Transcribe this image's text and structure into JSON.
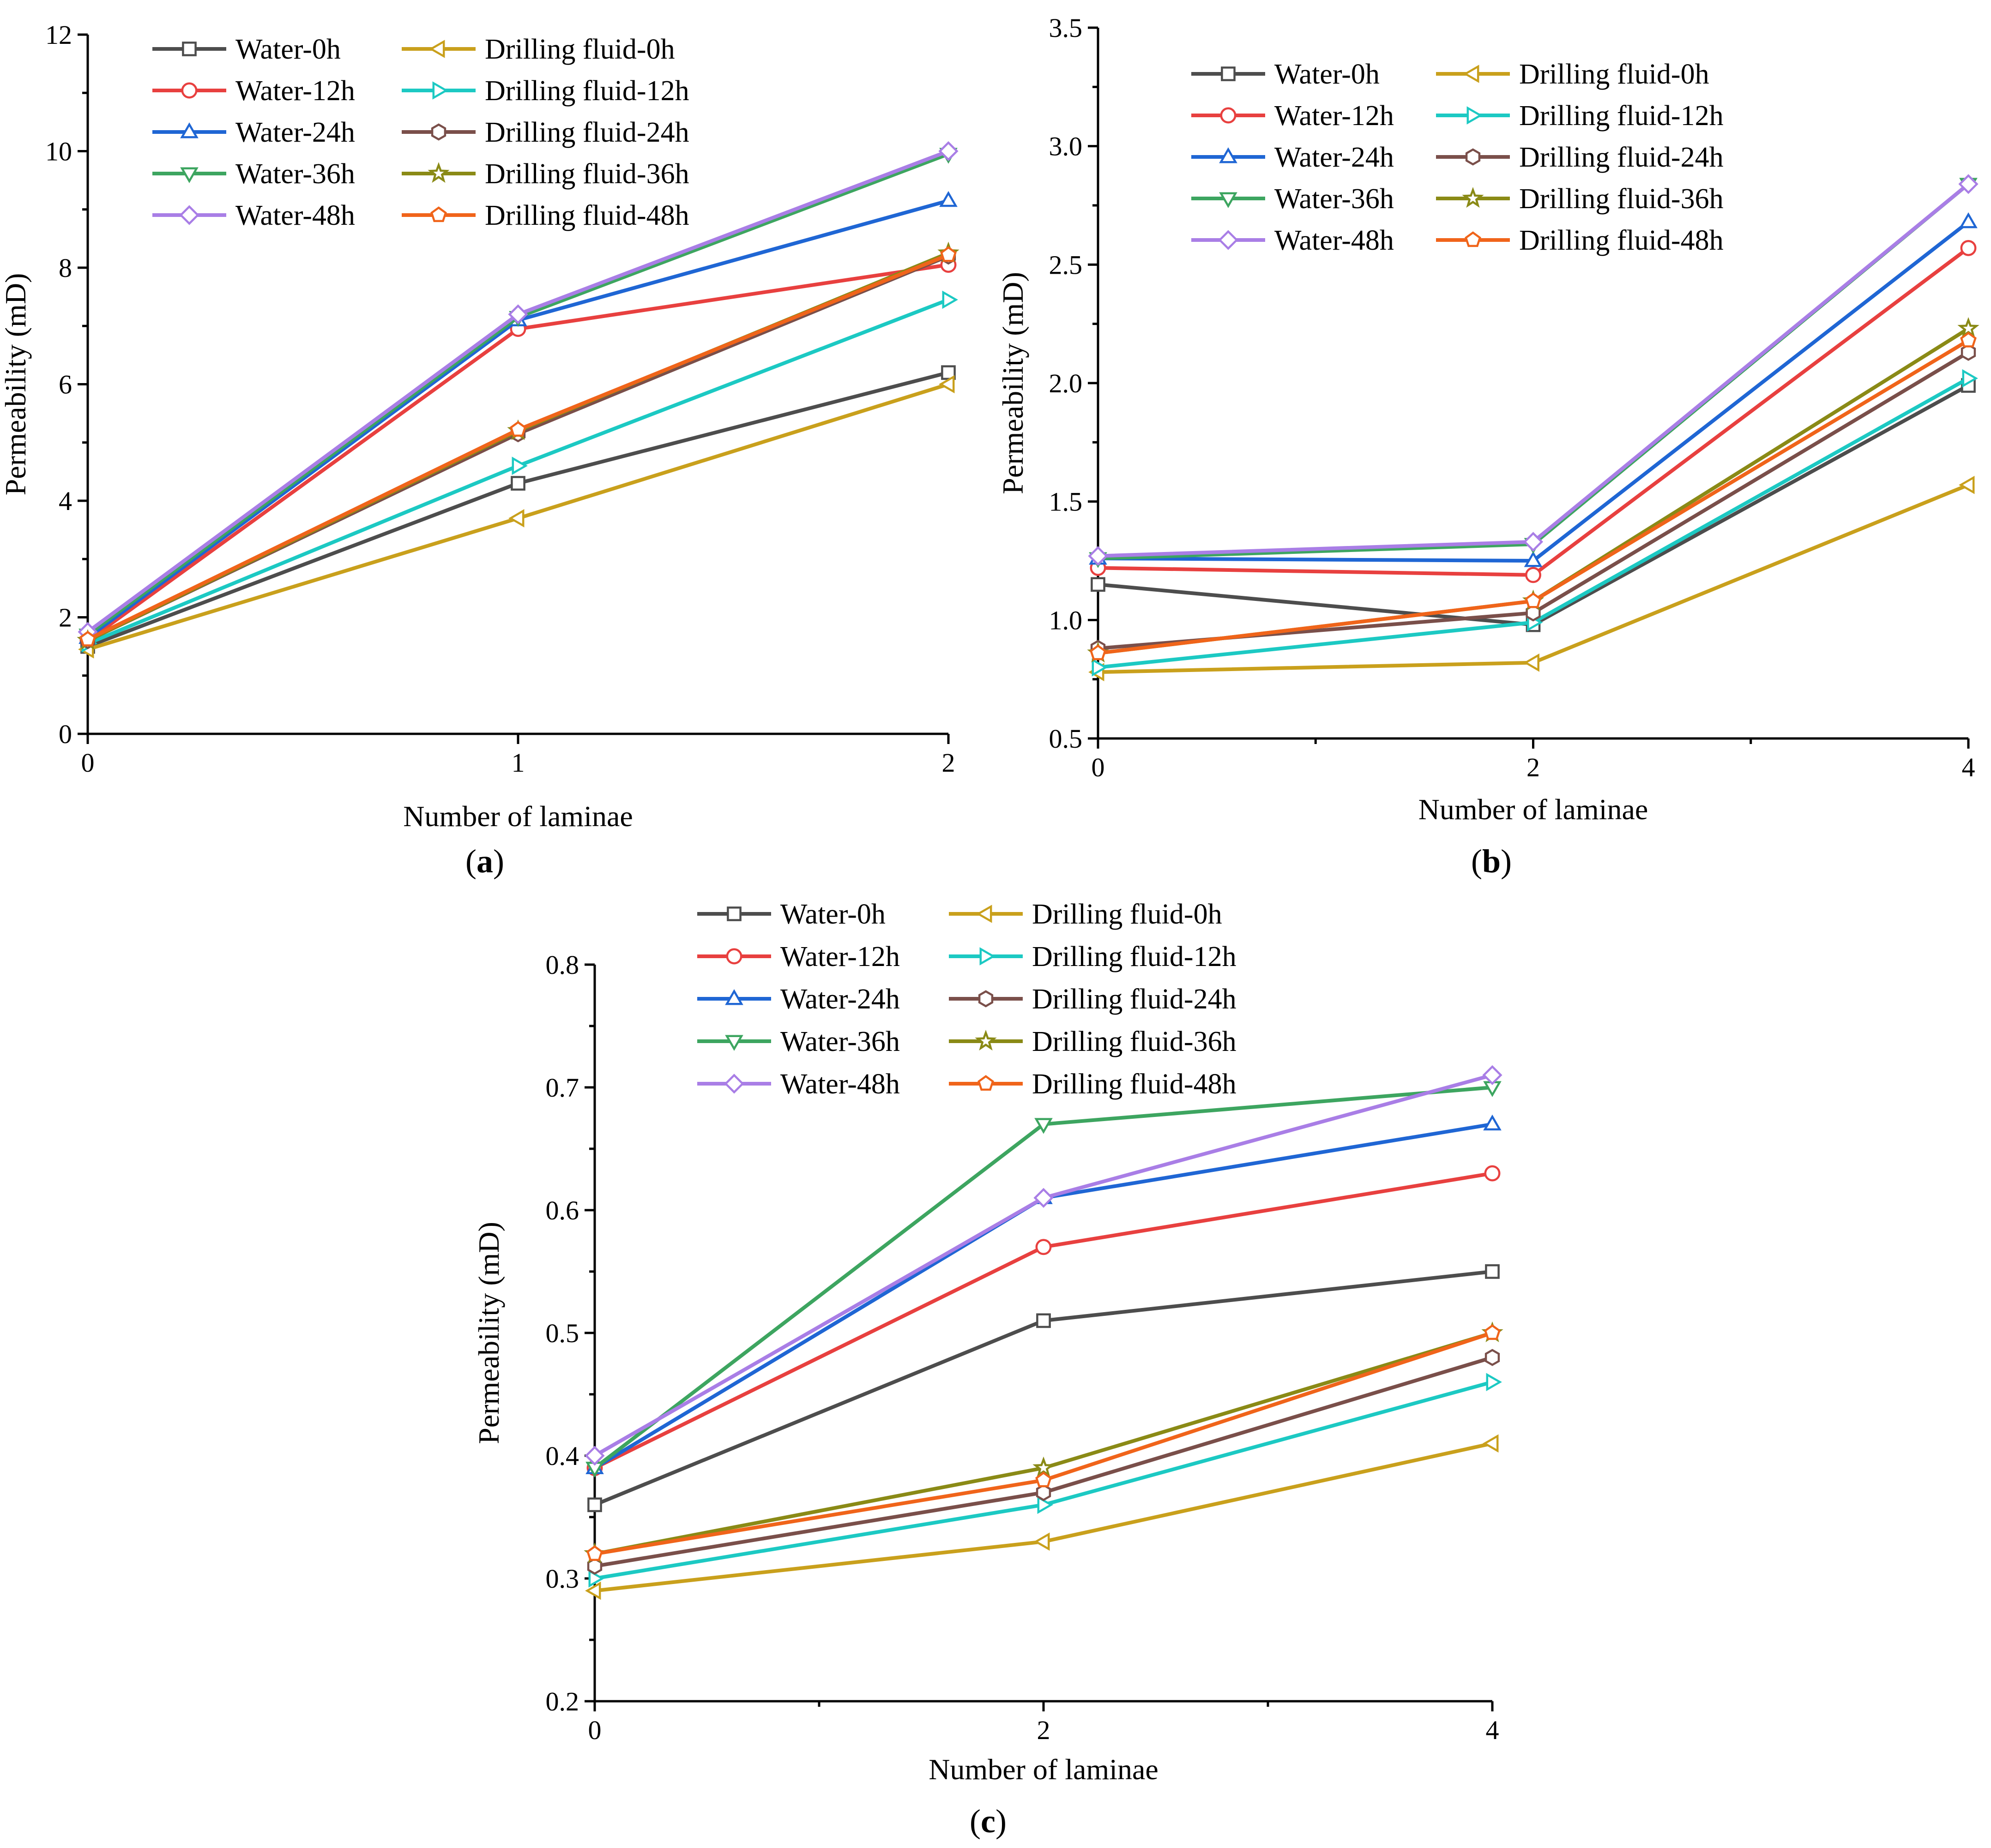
{
  "figure": {
    "series_styles": [
      {
        "name": "Water-0h",
        "color": "#4d4d4d",
        "marker": "square"
      },
      {
        "name": "Water-12h",
        "color": "#e8403f",
        "marker": "circle"
      },
      {
        "name": "Water-24h",
        "color": "#1f66d4",
        "marker": "triangle-up"
      },
      {
        "name": "Water-36h",
        "color": "#3da560",
        "marker": "triangle-down"
      },
      {
        "name": "Water-48h",
        "color": "#a97ee6",
        "marker": "diamond"
      },
      {
        "name": "Drilling fluid-0h",
        "color": "#c9a01c",
        "marker": "triangle-left"
      },
      {
        "name": "Drilling fluid-12h",
        "color": "#1cc9c3",
        "marker": "triangle-right"
      },
      {
        "name": "Drilling fluid-24h",
        "color": "#7a4f4a",
        "marker": "hexagon"
      },
      {
        "name": "Drilling fluid-36h",
        "color": "#8a8a16",
        "marker": "star"
      },
      {
        "name": "Drilling fluid-48h",
        "color": "#f0641a",
        "marker": "pentagon"
      }
    ]
  },
  "chart_data": [
    {
      "type": "line",
      "panel_label": "a",
      "xlabel": "Number of laminae",
      "ylabel": "Permeability (mD)",
      "x": [
        0,
        1,
        2
      ],
      "xlim": [
        0,
        2
      ],
      "ylim": [
        0,
        12
      ],
      "xticks": [
        0,
        1,
        2
      ],
      "xtick_labels": [
        "0",
        "1",
        "2"
      ],
      "yticks": [
        0,
        2,
        4,
        6,
        8,
        10,
        12
      ],
      "ytick_labels": [
        "0",
        "2",
        "4",
        "6",
        "8",
        "10",
        "12"
      ],
      "legend_position": "top-left",
      "series": [
        {
          "name": "Water-0h",
          "values": [
            1.5,
            4.3,
            6.2
          ]
        },
        {
          "name": "Water-12h",
          "values": [
            1.6,
            6.95,
            8.05
          ]
        },
        {
          "name": "Water-24h",
          "values": [
            1.65,
            7.1,
            9.15
          ]
        },
        {
          "name": "Water-36h",
          "values": [
            1.7,
            7.15,
            9.95
          ]
        },
        {
          "name": "Water-48h",
          "values": [
            1.75,
            7.2,
            10.0
          ]
        },
        {
          "name": "Drilling fluid-0h",
          "values": [
            1.45,
            3.7,
            6.0
          ]
        },
        {
          "name": "Drilling fluid-12h",
          "values": [
            1.55,
            4.6,
            7.45
          ]
        },
        {
          "name": "Drilling fluid-24h",
          "values": [
            1.6,
            5.15,
            8.2
          ]
        },
        {
          "name": "Drilling fluid-36h",
          "values": [
            1.6,
            5.2,
            8.25
          ]
        },
        {
          "name": "Drilling fluid-48h",
          "values": [
            1.62,
            5.22,
            8.22
          ]
        }
      ]
    },
    {
      "type": "line",
      "panel_label": "b",
      "xlabel": "Number of laminae",
      "ylabel": "Permeability (mD)",
      "x": [
        0,
        2,
        4
      ],
      "xlim": [
        0,
        4
      ],
      "ylim": [
        0.5,
        3.5
      ],
      "xticks": [
        0,
        1,
        2,
        3,
        4
      ],
      "xtick_labels": [
        "0",
        "",
        "2",
        "",
        "4"
      ],
      "yticks": [
        0.5,
        1.0,
        1.5,
        2.0,
        2.5,
        3.0,
        3.5
      ],
      "ytick_labels": [
        "0.5",
        "1.0",
        "1.5",
        "2.0",
        "2.5",
        "3.0",
        "3.5"
      ],
      "legend_position": "top-left",
      "series": [
        {
          "name": "Water-0h",
          "values": [
            1.15,
            0.98,
            1.99
          ]
        },
        {
          "name": "Water-12h",
          "values": [
            1.22,
            1.19,
            2.57
          ]
        },
        {
          "name": "Water-24h",
          "values": [
            1.26,
            1.25,
            2.68
          ]
        },
        {
          "name": "Water-36h",
          "values": [
            1.26,
            1.32,
            2.84
          ]
        },
        {
          "name": "Water-48h",
          "values": [
            1.27,
            1.33,
            2.84
          ]
        },
        {
          "name": "Drilling fluid-0h",
          "values": [
            0.78,
            0.82,
            1.57
          ]
        },
        {
          "name": "Drilling fluid-12h",
          "values": [
            0.8,
            0.99,
            2.02
          ]
        },
        {
          "name": "Drilling fluid-24h",
          "values": [
            0.88,
            1.03,
            2.13
          ]
        },
        {
          "name": "Drilling fluid-36h",
          "values": [
            0.86,
            1.08,
            2.23
          ]
        },
        {
          "name": "Drilling fluid-48h",
          "values": [
            0.86,
            1.08,
            2.18
          ]
        }
      ]
    },
    {
      "type": "line",
      "panel_label": "c",
      "xlabel": "Number of laminae",
      "ylabel": "Permeability (mD)",
      "x": [
        0,
        2,
        4
      ],
      "xlim": [
        0,
        4
      ],
      "ylim": [
        0.2,
        0.8
      ],
      "xticks": [
        0,
        1,
        2,
        3,
        4
      ],
      "xtick_labels": [
        "0",
        "",
        "2",
        "",
        "4"
      ],
      "yticks": [
        0.2,
        0.3,
        0.4,
        0.5,
        0.6,
        0.7,
        0.8
      ],
      "ytick_labels": [
        "0.2",
        "0.3",
        "0.4",
        "0.5",
        "0.6",
        "0.7",
        "0.8"
      ],
      "legend_position": "top-left",
      "series": [
        {
          "name": "Water-0h",
          "values": [
            0.36,
            0.51,
            0.55
          ]
        },
        {
          "name": "Water-12h",
          "values": [
            0.39,
            0.57,
            0.63
          ]
        },
        {
          "name": "Water-24h",
          "values": [
            0.39,
            0.61,
            0.67
          ]
        },
        {
          "name": "Water-36h",
          "values": [
            0.39,
            0.67,
            0.7
          ]
        },
        {
          "name": "Water-48h",
          "values": [
            0.4,
            0.61,
            0.71
          ]
        },
        {
          "name": "Drilling fluid-0h",
          "values": [
            0.29,
            0.33,
            0.41
          ]
        },
        {
          "name": "Drilling fluid-12h",
          "values": [
            0.3,
            0.36,
            0.46
          ]
        },
        {
          "name": "Drilling fluid-24h",
          "values": [
            0.31,
            0.37,
            0.48
          ]
        },
        {
          "name": "Drilling fluid-36h",
          "values": [
            0.32,
            0.39,
            0.5
          ]
        },
        {
          "name": "Drilling fluid-48h",
          "values": [
            0.32,
            0.38,
            0.5
          ]
        }
      ]
    }
  ]
}
